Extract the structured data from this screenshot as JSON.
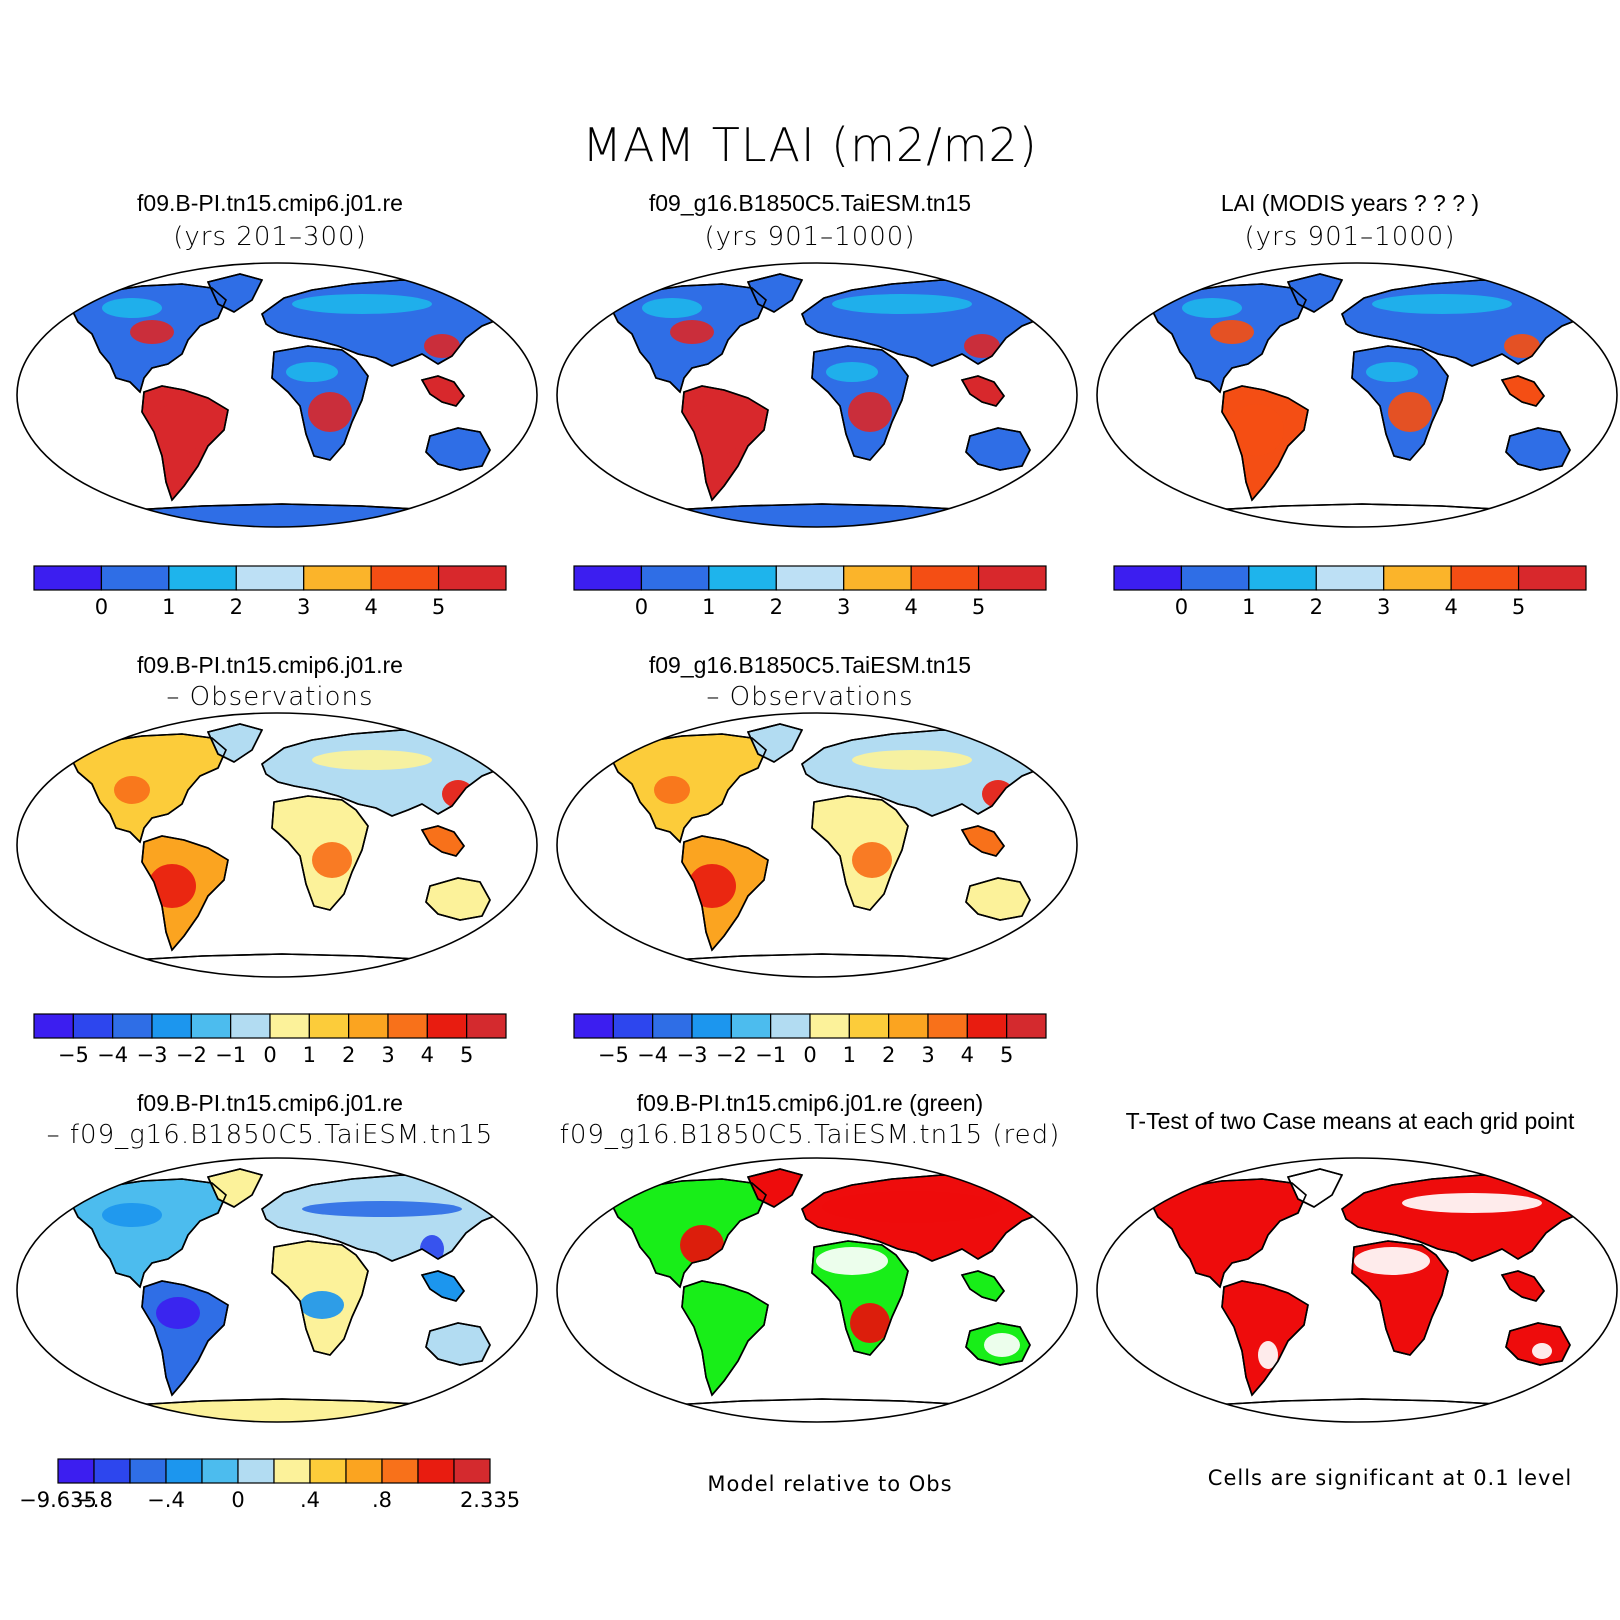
{
  "title": "MAM TLAI (m2/m2)",
  "colors": {
    "abs_scale": [
      "#3c1ef0",
      "#2f6ee6",
      "#1eb4ec",
      "#bde0f5",
      "#fbb42a",
      "#f44e14",
      "#d8282c"
    ],
    "diff_scale": [
      "#3c1ef0",
      "#2d46ee",
      "#2f6ee6",
      "#1c96ee",
      "#4cbcee",
      "#b2dcf2",
      "#fcf29a",
      "#fccc3a",
      "#fba420",
      "#f8711a",
      "#e81c10",
      "#d42a2e"
    ],
    "case_diff_scale": [
      "#3c1ef0",
      "#2d46ee",
      "#2f6ee6",
      "#1c96ee",
      "#4cbcee",
      "#b2dcf2",
      "#fcf29a",
      "#fccc3a",
      "#fba420",
      "#f8711a",
      "#e81c10",
      "#d42a2e"
    ],
    "green": "#18ee18",
    "red": "#ee0c0c"
  },
  "panels": [
    {
      "line1": "f09.B-PI.tn15.cmip6.j01.re",
      "line2": "(yrs 201–300)"
    },
    {
      "line1": "f09_g16.B1850C5.TaiESM.tn15",
      "line2": "(yrs 901–1000)"
    },
    {
      "line1": "LAI (MODIS years ? ? ? )",
      "line2": "(yrs 901–1000)"
    },
    {
      "line1": "f09.B-PI.tn15.cmip6.j01.re",
      "line2": "– Observations"
    },
    {
      "line1": "f09_g16.B1850C5.TaiESM.tn15",
      "line2": "– Observations"
    },
    {
      "line1": "f09.B-PI.tn15.cmip6.j01.re",
      "line2": "– f09_g16.B1850C5.TaiESM.tn15"
    },
    {
      "line1": "f09.B-PI.tn15.cmip6.j01.re (green)",
      "line2": "f09_g16.B1850C5.TaiESM.tn15 (red)"
    },
    {
      "line1": "T-Test of two Case means at each grid point",
      "line2": ""
    }
  ],
  "colorbars": {
    "abs_labels": [
      "0",
      "1",
      "2",
      "3",
      "4",
      "5"
    ],
    "diff_labels": [
      "−5",
      "−4",
      "−3",
      "−2",
      "−1",
      "0",
      "1",
      "2",
      "3",
      "4",
      "5"
    ],
    "case_diff_labels": [
      "−9.635",
      "−.8",
      "−.4",
      "0",
      ".4",
      ".8",
      "2.335"
    ]
  },
  "notes": {
    "model_relative": "Model relative to Obs",
    "significance": "Cells are significant at 0.1 level"
  }
}
